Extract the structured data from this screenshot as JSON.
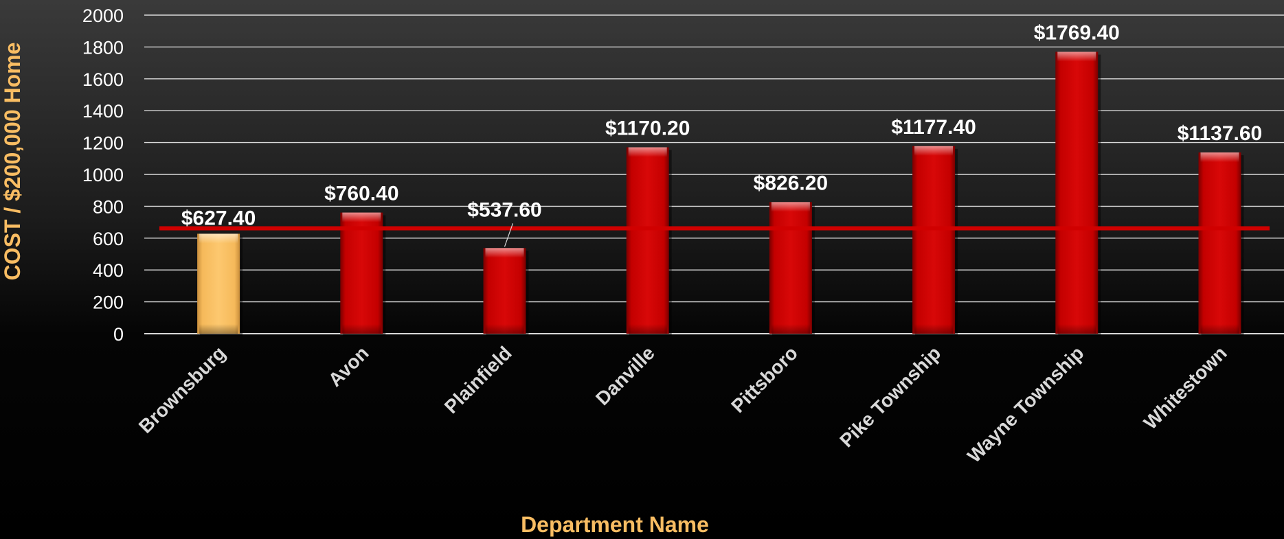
{
  "chart_data": {
    "type": "bar",
    "title": "",
    "xlabel": "Department Name",
    "ylabel": "COST / $200,000 Home",
    "ylim": [
      0,
      2000
    ],
    "yticks": [
      "0",
      "200",
      "400",
      "600",
      "800",
      "1000",
      "1200",
      "1400",
      "1600",
      "1800",
      "2000"
    ],
    "categories": [
      "Brownsburg",
      "Avon",
      "Plainfield",
      "Danville",
      "Pittsboro",
      "Pike Township",
      "Wayne Township",
      "Whitestown"
    ],
    "values": [
      627.4,
      760.4,
      537.6,
      1170.2,
      826.2,
      1177.4,
      1769.4,
      1137.6
    ],
    "data_labels": [
      "$627.40",
      "$760.40",
      "$537.60",
      "$1170.20",
      "$826.20",
      "$1177.40",
      "$1769.40",
      "$1137.60"
    ],
    "highlight_category": "Brownsburg",
    "reference_line": 627.4,
    "grid": true,
    "legend": "none",
    "colors": {
      "bar": "#cc0000",
      "highlight_bar": "#fcc468",
      "reference_line": "#d00000",
      "axis_title": "#f9bd63",
      "grid": "#d9d9d9"
    }
  }
}
